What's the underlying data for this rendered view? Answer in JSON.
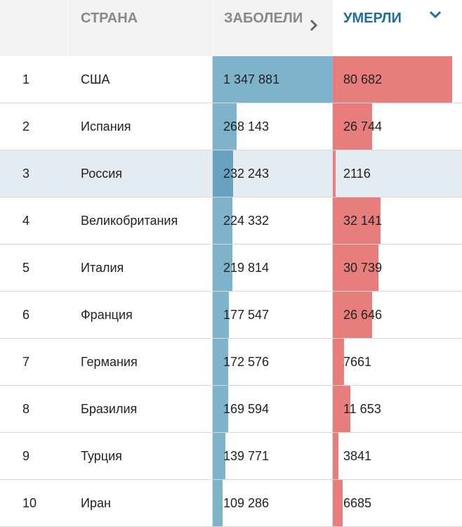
{
  "header": {
    "rank": "",
    "country": "СТРАНА",
    "cases": "ЗАБОЛЕЛИ",
    "deaths": "УМЕРЛИ"
  },
  "colors": {
    "cases_bar": "#7db3cb",
    "deaths_bar": "#e77d7d",
    "highlight_row": "#e4ecf2",
    "active_header": "#1f6e9c"
  },
  "icons": {
    "cases_sort": "chevron-right-icon",
    "deaths_sort": "chevron-down-icon"
  },
  "rows": [
    {
      "rank": "1",
      "country": "США",
      "cases": "1 347 881",
      "deaths": "80 682",
      "cases_value": 1347881,
      "deaths_value": 80682
    },
    {
      "rank": "2",
      "country": "Испания",
      "cases": "268 143",
      "deaths": "26 744",
      "cases_value": 268143,
      "deaths_value": 26744
    },
    {
      "rank": "3",
      "country": "Россия",
      "cases": "232 243",
      "deaths": "2116",
      "cases_value": 232243,
      "deaths_value": 2116
    },
    {
      "rank": "4",
      "country": "Великобритания",
      "cases": "224 332",
      "deaths": "32 141",
      "cases_value": 224332,
      "deaths_value": 32141
    },
    {
      "rank": "5",
      "country": "Италия",
      "cases": "219 814",
      "deaths": "30 739",
      "cases_value": 219814,
      "deaths_value": 30739
    },
    {
      "rank": "6",
      "country": "Франция",
      "cases": "177 547",
      "deaths": "26 646",
      "cases_value": 177547,
      "deaths_value": 26646
    },
    {
      "rank": "7",
      "country": "Германия",
      "cases": "172 576",
      "deaths": "7661",
      "cases_value": 172576,
      "deaths_value": 7661
    },
    {
      "rank": "8",
      "country": "Бразилия",
      "cases": "169 594",
      "deaths": "11 653",
      "cases_value": 169594,
      "deaths_value": 11653
    },
    {
      "rank": "9",
      "country": "Турция",
      "cases": "139 771",
      "deaths": "3841",
      "cases_value": 139771,
      "deaths_value": 3841
    },
    {
      "rank": "10",
      "country": "Иран",
      "cases": "109 286",
      "deaths": "6685",
      "cases_value": 109286,
      "deaths_value": 6685
    }
  ]
}
